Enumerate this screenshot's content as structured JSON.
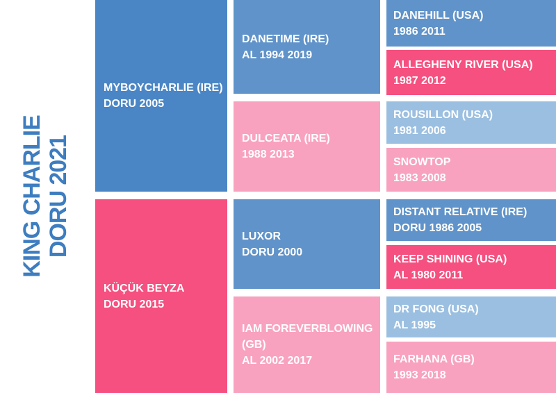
{
  "subject": {
    "name": "KING CHARLIE",
    "details": "DORU 2021"
  },
  "horses": [
    {
      "name": "MYBOYCHARLIE (IRE)",
      "details": "DORU 2005"
    },
    {
      "name": "KÜÇÜK BEYZA",
      "details": "DORU 2015"
    },
    {
      "name": "DANETIME (IRE)",
      "details": "AL 1994 2019"
    },
    {
      "name": "DULCEATA (IRE)",
      "details": "1988 2013"
    },
    {
      "name": "LUXOR",
      "details": "DORU 2000"
    },
    {
      "name": "IAM FOREVERBLOWING (GB)",
      "details": "AL 2002 2017"
    },
    {
      "name": "DANEHILL (USA)",
      "details": "1986 2011"
    },
    {
      "name": "ALLEGHENY RIVER (USA)",
      "details": "1987 2012"
    },
    {
      "name": "ROUSILLON (USA)",
      "details": "1981 2006"
    },
    {
      "name": "SNOWTOP",
      "details": "1983 2008"
    },
    {
      "name": "DISTANT RELATIVE (IRE)",
      "details": "DORU 1986 2005"
    },
    {
      "name": "KEEP SHINING (USA)",
      "details": "AL 1980 2011"
    },
    {
      "name": "DR FONG (USA)",
      "details": "AL 1995"
    },
    {
      "name": "FARHANA (GB)",
      "details": "1993 2018"
    }
  ]
}
